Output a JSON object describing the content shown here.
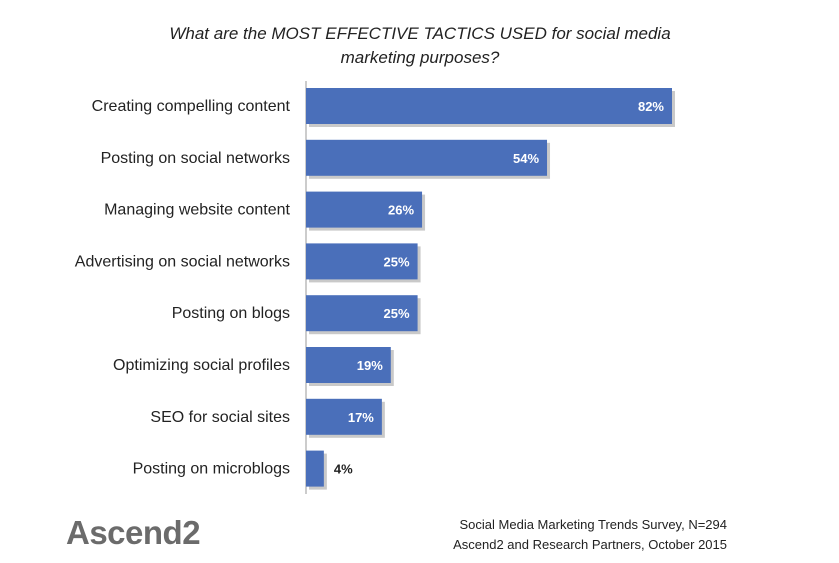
{
  "chart_data": {
    "type": "bar",
    "orientation": "horizontal",
    "title_lines": [
      "What are the MOST EFFECTIVE TACTICS USED for social media",
      "marketing purposes?"
    ],
    "categories": [
      "Creating compelling content",
      "Posting on social networks",
      "Managing website content",
      "Advertising on social networks",
      "Posting on blogs",
      "Optimizing social profiles",
      "SEO for social sites",
      "Posting on microblogs"
    ],
    "values": [
      82,
      54,
      26,
      25,
      25,
      19,
      17,
      4
    ],
    "value_labels": [
      "82%",
      "54%",
      "26%",
      "25%",
      "25%",
      "19%",
      "17%",
      "4%"
    ],
    "unit": "%",
    "bar_color": "#4a6fba",
    "grid": false,
    "legend": "none"
  },
  "branding": {
    "logo_text": "Ascend",
    "logo_suffix": "2"
  },
  "source": {
    "line1": "Social Media Marketing Trends Survey, N=294",
    "line2": "Ascend2 and Research Partners, October 2015"
  }
}
